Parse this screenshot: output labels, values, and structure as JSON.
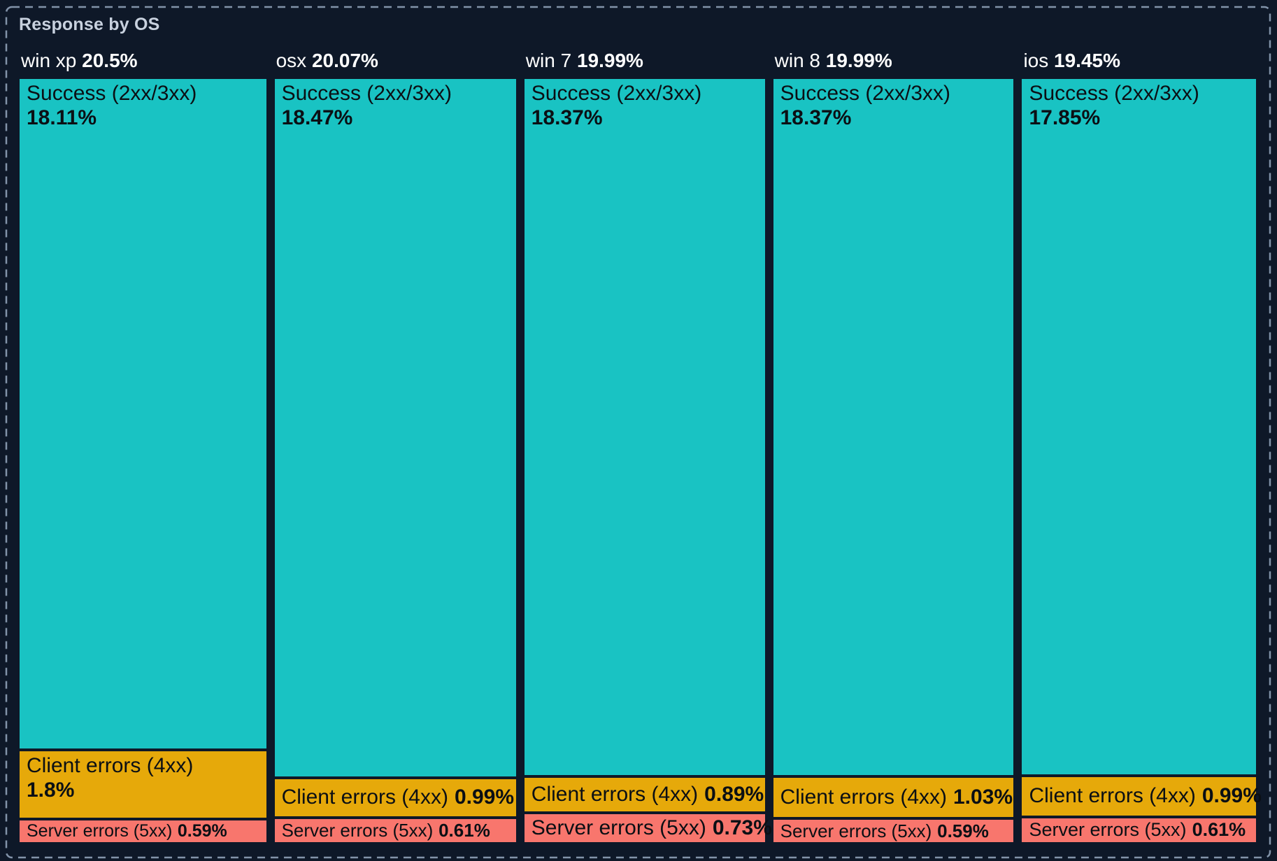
{
  "card": {
    "title": "Response by OS"
  },
  "chart_data": {
    "type": "treemap",
    "title": "Response by OS",
    "unit": "%",
    "group_by": "OS",
    "layout": "columns-by-os, stacked-cells-by-response-class, labels-top-left, no-legend",
    "segment_names": [
      "Success (2xx/3xx)",
      "Client errors (4xx)",
      "Server errors (5xx)"
    ],
    "colors": {
      "success": "#19C3C3",
      "client": "#E6A90A",
      "server": "#F8766D",
      "background": "#0E1828",
      "title_text": "#C8D1DE",
      "header_text": "#FFFFFF",
      "cell_text": "#0B0F14",
      "frame_border": "#8293A9"
    },
    "columns": [
      {
        "name": "win xp",
        "total": 20.5,
        "total_label": "20.5%",
        "segments": [
          {
            "key": "success",
            "label": "Success (2xx/3xx)",
            "value": 18.11,
            "value_label": "18.11%"
          },
          {
            "key": "client",
            "label": "Client errors (4xx)",
            "value": 1.8,
            "value_label": "1.8%"
          },
          {
            "key": "server",
            "label": "Server errors (5xx)",
            "value": 0.59,
            "value_label": "0.59%"
          }
        ]
      },
      {
        "name": "osx",
        "total": 20.07,
        "total_label": "20.07%",
        "segments": [
          {
            "key": "success",
            "label": "Success (2xx/3xx)",
            "value": 18.47,
            "value_label": "18.47%"
          },
          {
            "key": "client",
            "label": "Client errors (4xx)",
            "value": 0.99,
            "value_label": "0.99%"
          },
          {
            "key": "server",
            "label": "Server errors (5xx)",
            "value": 0.61,
            "value_label": "0.61%"
          }
        ]
      },
      {
        "name": "win 7",
        "total": 19.99,
        "total_label": "19.99%",
        "segments": [
          {
            "key": "success",
            "label": "Success (2xx/3xx)",
            "value": 18.37,
            "value_label": "18.37%"
          },
          {
            "key": "client",
            "label": "Client errors (4xx)",
            "value": 0.89,
            "value_label": "0.89%"
          },
          {
            "key": "server",
            "label": "Server errors (5xx)",
            "value": 0.73,
            "value_label": "0.73%"
          }
        ]
      },
      {
        "name": "win 8",
        "total": 19.99,
        "total_label": "19.99%",
        "segments": [
          {
            "key": "success",
            "label": "Success (2xx/3xx)",
            "value": 18.37,
            "value_label": "18.37%"
          },
          {
            "key": "client",
            "label": "Client errors (4xx)",
            "value": 1.03,
            "value_label": "1.03%"
          },
          {
            "key": "server",
            "label": "Server errors (5xx)",
            "value": 0.59,
            "value_label": "0.59%"
          }
        ]
      },
      {
        "name": "ios",
        "total": 19.45,
        "total_label": "19.45%",
        "segments": [
          {
            "key": "success",
            "label": "Success (2xx/3xx)",
            "value": 17.85,
            "value_label": "17.85%"
          },
          {
            "key": "client",
            "label": "Client errors (4xx)",
            "value": 0.99,
            "value_label": "0.99%"
          },
          {
            "key": "server",
            "label": "Server errors (5xx)",
            "value": 0.61,
            "value_label": "0.61%"
          }
        ]
      }
    ]
  }
}
